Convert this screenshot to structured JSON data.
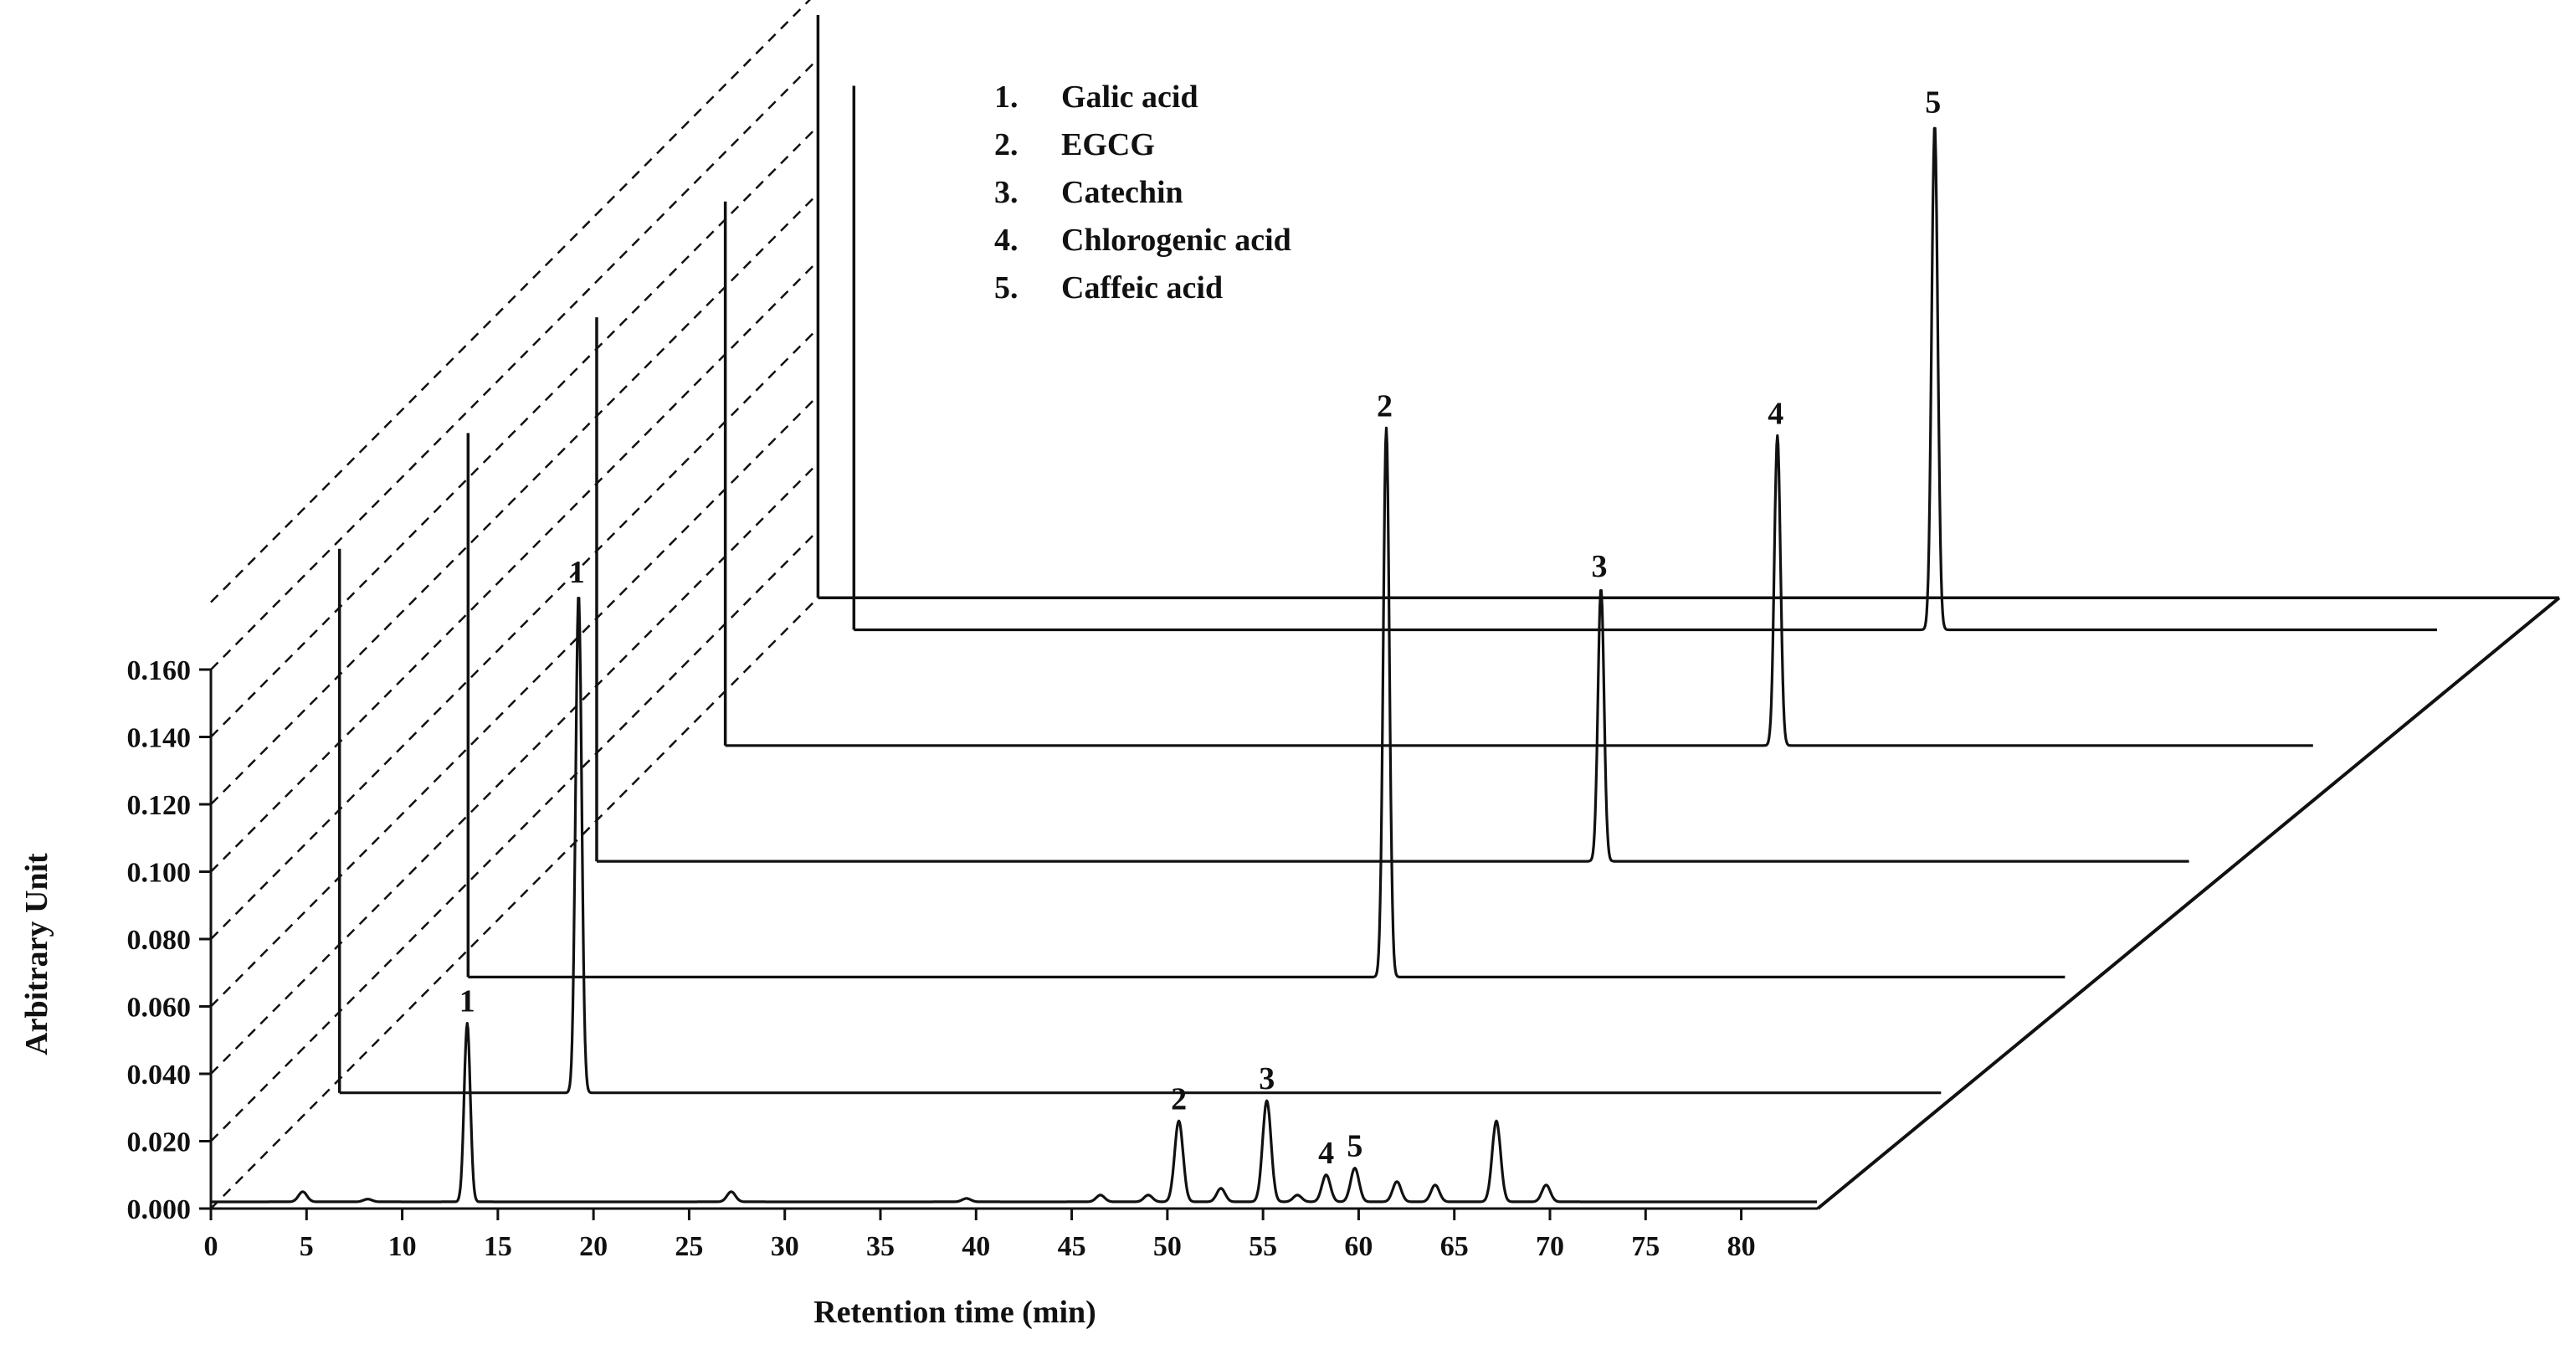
{
  "chart_data": {
    "type": "line",
    "subtype": "3d-stacked-chromatograms",
    "title": "",
    "xlabel": "Retention time (min)",
    "ylabel": "Arbitrary Unit",
    "xlim": [
      0,
      84
    ],
    "ylim": [
      0,
      0.16
    ],
    "x_ticks": [
      "0",
      "5",
      "10",
      "15",
      "20",
      "25",
      "30",
      "35",
      "40",
      "45",
      "50",
      "55",
      "60",
      "65",
      "70",
      "75",
      "80"
    ],
    "y_ticks": [
      "0.000",
      "0.020",
      "0.040",
      "0.060",
      "0.080",
      "0.100",
      "0.120",
      "0.140",
      "0.160"
    ],
    "grid": false,
    "legend": {
      "position": "top-center",
      "entries": [
        {
          "num": "1.",
          "name": "Galic acid"
        },
        {
          "num": "2.",
          "name": "EGCG"
        },
        {
          "num": "3.",
          "name": "Catechin"
        },
        {
          "num": "4.",
          "name": "Chlorogenic acid"
        },
        {
          "num": "5.",
          "name": "Caffeic acid"
        }
      ]
    },
    "series": [
      {
        "baseline": 0.002,
        "peaks": [
          {
            "x": 4.8,
            "height": 0.003
          },
          {
            "x": 8.2,
            "height": 0.0008
          },
          {
            "x": 13.4,
            "height": 0.053,
            "label": "1"
          },
          {
            "x": 27.2,
            "height": 0.003
          },
          {
            "x": 39.5,
            "height": 0.001
          },
          {
            "x": 46.5,
            "height": 0.002
          },
          {
            "x": 49.0,
            "height": 0.002
          },
          {
            "x": 50.6,
            "height": 0.024,
            "label": "2"
          },
          {
            "x": 52.8,
            "height": 0.004
          },
          {
            "x": 55.2,
            "height": 0.03,
            "label": "3"
          },
          {
            "x": 56.8,
            "height": 0.002
          },
          {
            "x": 58.3,
            "height": 0.008,
            "label": "4"
          },
          {
            "x": 59.8,
            "height": 0.01,
            "label": "5"
          },
          {
            "x": 62.0,
            "height": 0.006
          },
          {
            "x": 64.0,
            "height": 0.005
          },
          {
            "x": 67.2,
            "height": 0.024
          },
          {
            "x": 69.8,
            "height": 0.005
          }
        ]
      },
      {
        "baseline": 0.0,
        "peaks": [
          {
            "x": 12.5,
            "height": 0.148,
            "label": "1"
          }
        ]
      },
      {
        "baseline": 0.0,
        "peaks": [
          {
            "x": 48.0,
            "height": 0.163,
            "label": "2"
          }
        ]
      },
      {
        "baseline": 0.0,
        "peaks": [
          {
            "x": 52.5,
            "height": 0.081,
            "label": "3"
          }
        ]
      },
      {
        "baseline": 0.0,
        "peaks": [
          {
            "x": 55.0,
            "height": 0.092,
            "label": "4"
          }
        ]
      },
      {
        "baseline": 0.0,
        "peaks": [
          {
            "x": 56.5,
            "height": 0.15,
            "label": "5"
          }
        ]
      }
    ]
  }
}
